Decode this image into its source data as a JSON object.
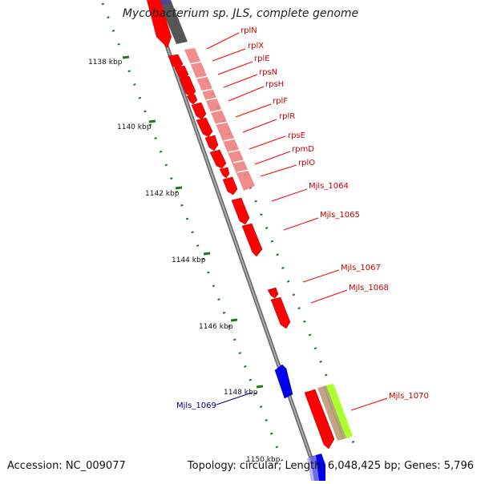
{
  "title": "Mycobacterium sp. JLS, complete genome",
  "footer": {
    "accession": "Accession: NC_009077",
    "summary": "Topology: circular; Length: 6,048,425 bp; Genes: 5,796"
  },
  "kbp_labels": [
    "1138 kbp",
    "1140 kbp",
    "1142 kbp",
    "1144 kbp",
    "1146 kbp",
    "1148 kbp",
    "1150 kbp"
  ],
  "gene_labels_red": [
    "rplN",
    "rplX",
    "rplE",
    "rpsN",
    "rpsH",
    "rplF",
    "rplR",
    "rpsE",
    "rpmD",
    "rplO",
    "Mjls_1064",
    "Mjls_1065",
    "Mjls_1067",
    "Mjls_1068",
    "Mjls_1070"
  ],
  "gene_labels_blue": [
    "Mjls_1069"
  ],
  "colors": {
    "forward_gene": "#ff0000",
    "reverse_gene": "#0000ee",
    "ribosomal_band": "#f08080",
    "backbone": "#888888",
    "tick_green": "#1a7a1a",
    "label_red": "#cc0000",
    "label_blue": "#00008b"
  }
}
